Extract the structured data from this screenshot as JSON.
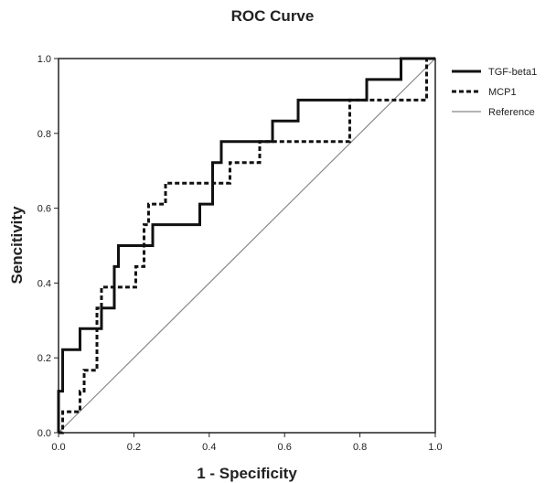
{
  "chart_data": {
    "type": "line",
    "title": "ROC Curve",
    "xlabel": "1 - Specificity",
    "ylabel": "Sencitivity",
    "xlim": [
      0,
      1
    ],
    "ylim": [
      0,
      1
    ],
    "x_ticks": [
      "0.0",
      "0.2",
      "0.4",
      "0.6",
      "0.8",
      "1.0"
    ],
    "y_ticks": [
      "0.0",
      "0.2",
      "0.4",
      "0.6",
      "0.8",
      "1.0"
    ],
    "grid": false,
    "legend_position": "right",
    "series": [
      {
        "name": "TGF-beta1",
        "style": "solid-thick",
        "color": "#111111",
        "points": [
          [
            0,
            0
          ],
          [
            0,
            0.111
          ],
          [
            0.011,
            0.111
          ],
          [
            0.011,
            0.222
          ],
          [
            0.057,
            0.222
          ],
          [
            0.057,
            0.278
          ],
          [
            0.114,
            0.278
          ],
          [
            0.114,
            0.333
          ],
          [
            0.148,
            0.333
          ],
          [
            0.148,
            0.444
          ],
          [
            0.159,
            0.444
          ],
          [
            0.159,
            0.5
          ],
          [
            0.25,
            0.5
          ],
          [
            0.25,
            0.556
          ],
          [
            0.375,
            0.556
          ],
          [
            0.375,
            0.611
          ],
          [
            0.409,
            0.611
          ],
          [
            0.409,
            0.722
          ],
          [
            0.432,
            0.722
          ],
          [
            0.432,
            0.778
          ],
          [
            0.568,
            0.778
          ],
          [
            0.568,
            0.833
          ],
          [
            0.636,
            0.833
          ],
          [
            0.636,
            0.889
          ],
          [
            0.818,
            0.889
          ],
          [
            0.818,
            0.944
          ],
          [
            0.909,
            0.944
          ],
          [
            0.909,
            1.0
          ],
          [
            1.0,
            1.0
          ]
        ]
      },
      {
        "name": "MCP1",
        "style": "dashed-thick",
        "color": "#111111",
        "points": [
          [
            0,
            0
          ],
          [
            0.011,
            0
          ],
          [
            0.011,
            0.056
          ],
          [
            0.057,
            0.056
          ],
          [
            0.057,
            0.111
          ],
          [
            0.068,
            0.111
          ],
          [
            0.068,
            0.167
          ],
          [
            0.102,
            0.167
          ],
          [
            0.102,
            0.333
          ],
          [
            0.114,
            0.333
          ],
          [
            0.114,
            0.389
          ],
          [
            0.205,
            0.389
          ],
          [
            0.205,
            0.444
          ],
          [
            0.227,
            0.444
          ],
          [
            0.227,
            0.556
          ],
          [
            0.239,
            0.556
          ],
          [
            0.239,
            0.611
          ],
          [
            0.284,
            0.611
          ],
          [
            0.284,
            0.667
          ],
          [
            0.455,
            0.667
          ],
          [
            0.455,
            0.722
          ],
          [
            0.534,
            0.722
          ],
          [
            0.534,
            0.778
          ],
          [
            0.773,
            0.778
          ],
          [
            0.773,
            0.889
          ],
          [
            0.977,
            0.889
          ],
          [
            0.977,
            1.0
          ],
          [
            1.0,
            1.0
          ]
        ]
      },
      {
        "name": "Reference",
        "style": "solid-thin",
        "color": "#888888",
        "points": [
          [
            0,
            0
          ],
          [
            1,
            1
          ]
        ]
      }
    ]
  }
}
